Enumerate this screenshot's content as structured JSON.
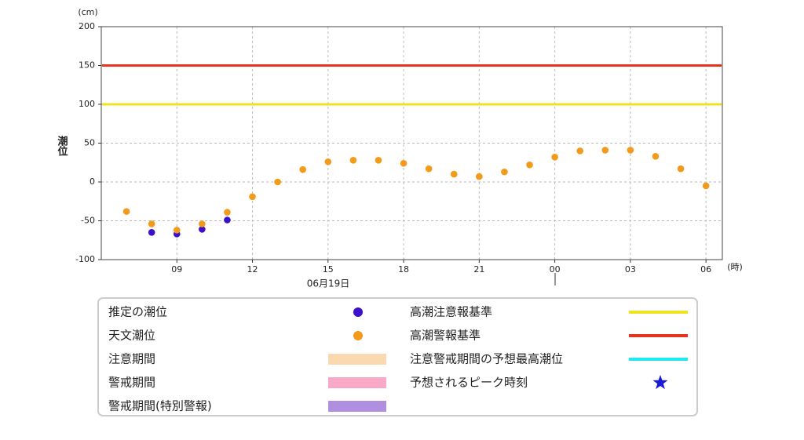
{
  "chart_data": {
    "type": "scatter",
    "y_label": "潮位",
    "y_unit": "(cm)",
    "x_unit": "(時)",
    "date_label": "06月19日",
    "xlim": [
      6,
      30.65
    ],
    "xticks": [
      {
        "value": 9,
        "label": "09"
      },
      12,
      15,
      18,
      21,
      {
        "value": 24,
        "label": "00"
      },
      {
        "value": 27,
        "label": "03"
      },
      {
        "value": 30,
        "label": "06"
      }
    ],
    "ylim": [
      -100,
      200
    ],
    "yticks": [
      -100,
      -50,
      0,
      50,
      100,
      150,
      200
    ],
    "grid": true,
    "series": [
      {
        "name": "推定の潮位",
        "color": "#3a10c8",
        "x": [
          8,
          9,
          10,
          11
        ],
        "values": [
          -65,
          -67,
          -61,
          -49
        ]
      },
      {
        "name": "天文潮位",
        "color": "#f39a1a",
        "x": [
          7,
          8,
          9,
          10,
          11,
          12,
          13,
          14,
          15,
          16,
          17,
          18,
          19,
          20,
          21,
          22,
          23,
          24,
          25,
          26,
          27,
          28,
          29,
          30
        ],
        "values": [
          -38,
          -54,
          -62,
          -54,
          -39,
          -19,
          0,
          16,
          26,
          28,
          28,
          24,
          17,
          10,
          7,
          13,
          22,
          32,
          40,
          41,
          41,
          33,
          17,
          -5
        ]
      }
    ],
    "reference_lines": [
      {
        "name": "高潮注意報基準",
        "color": "#ede41e",
        "value": 100
      },
      {
        "name": "高潮警報基準",
        "color": "#e8321e",
        "value": 150
      }
    ],
    "periods": [
      {
        "name": "注意期間",
        "color": "#fbd9b0"
      },
      {
        "name": "警戒期間",
        "color": "#f9a9c6"
      },
      {
        "name": "警戒期間(特別警報)",
        "color": "#b08fe0"
      }
    ],
    "other_legend": [
      {
        "name": "注意警戒期間の予想最高潮位",
        "color": "#1ee8f0",
        "marker": "line"
      },
      {
        "name": "予想されるピーク時刻",
        "color": "#1a1ad8",
        "marker": "star"
      }
    ]
  }
}
